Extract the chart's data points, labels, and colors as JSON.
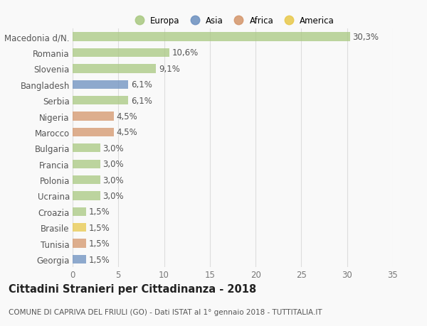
{
  "categories": [
    "Macedonia d/N.",
    "Romania",
    "Slovenia",
    "Bangladesh",
    "Serbia",
    "Nigeria",
    "Marocco",
    "Bulgaria",
    "Francia",
    "Polonia",
    "Ucraina",
    "Croazia",
    "Brasile",
    "Tunisia",
    "Georgia"
  ],
  "values": [
    30.3,
    10.6,
    9.1,
    6.1,
    6.1,
    4.5,
    4.5,
    3.0,
    3.0,
    3.0,
    3.0,
    1.5,
    1.5,
    1.5,
    1.5
  ],
  "labels": [
    "30,3%",
    "10,6%",
    "9,1%",
    "6,1%",
    "6,1%",
    "4,5%",
    "4,5%",
    "3,0%",
    "3,0%",
    "3,0%",
    "3,0%",
    "1,5%",
    "1,5%",
    "1,5%",
    "1,5%"
  ],
  "colors": [
    "#a8c880",
    "#a8c880",
    "#a8c880",
    "#6b8fbf",
    "#a8c880",
    "#d4956a",
    "#d4956a",
    "#a8c880",
    "#a8c880",
    "#a8c880",
    "#a8c880",
    "#a8c880",
    "#e8c84a",
    "#d4956a",
    "#6b8fbf"
  ],
  "legend_labels": [
    "Europa",
    "Asia",
    "Africa",
    "America"
  ],
  "legend_colors": [
    "#a8c880",
    "#6b8fbf",
    "#d4956a",
    "#e8c84a"
  ],
  "title": "Cittadini Stranieri per Cittadinanza - 2018",
  "subtitle": "COMUNE DI CAPRIVA DEL FRIULI (GO) - Dati ISTAT al 1° gennaio 2018 - TUTTITALIA.IT",
  "xlim": [
    0,
    35
  ],
  "xticks": [
    0,
    5,
    10,
    15,
    20,
    25,
    30,
    35
  ],
  "background_color": "#f9f9f9",
  "grid_color": "#dddddd",
  "bar_height": 0.55,
  "label_fontsize": 8.5,
  "tick_fontsize": 8.5,
  "title_fontsize": 10.5,
  "subtitle_fontsize": 7.5,
  "bar_alpha": 0.75
}
